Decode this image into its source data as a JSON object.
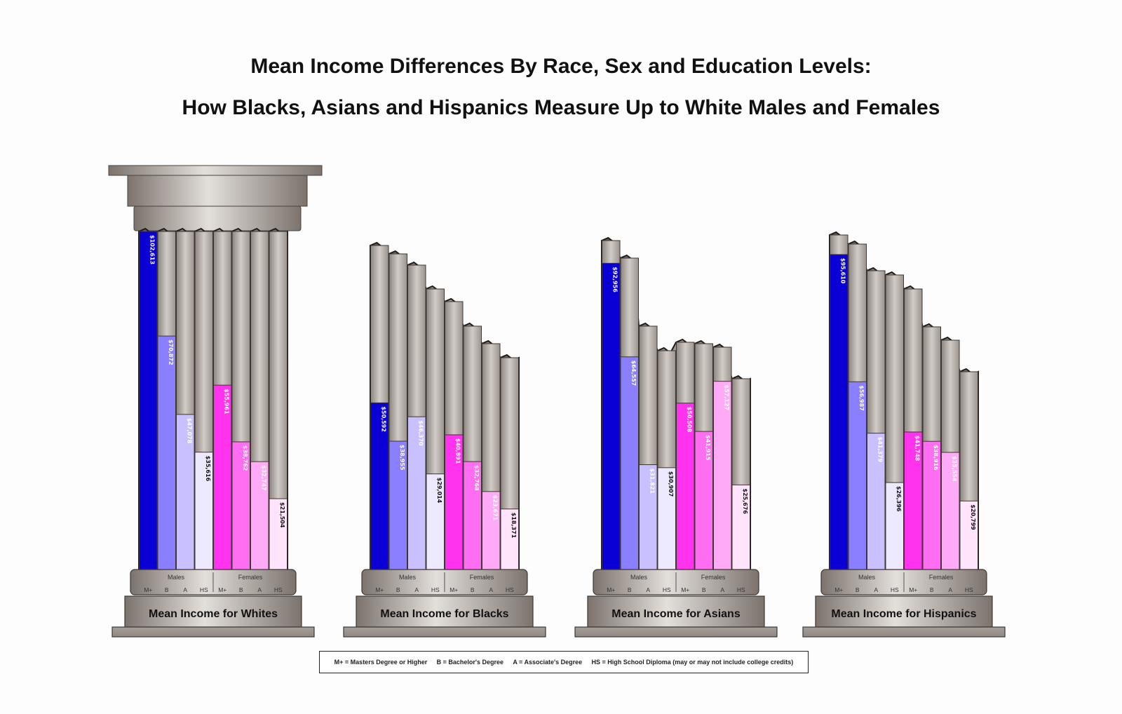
{
  "title_line1": "Mean Income Differences By Race, Sex and Education Levels:",
  "title_line2": "How Blacks, Asians and Hispanics Measure Up to White Males and Females",
  "group_labels": {
    "males": "Males",
    "females": "Females"
  },
  "level_labels": [
    "M+",
    "B",
    "A",
    "HS",
    "M+",
    "B",
    "A",
    "HS"
  ],
  "legend": [
    "M+ = Masters Degree or Higher",
    "B = Bachelor's Degree",
    "A = Associate's Degree",
    "HS = High School Diploma (may or may not include college credits)"
  ],
  "colors": {
    "male_mplus": "#0a00d6",
    "male_b": "#8a80ff",
    "male_a": "#c8c0ff",
    "male_hs": "#edeaff",
    "female_mplus": "#ff33ee",
    "female_b": "#ff6ef0",
    "female_a": "#ffaaf6",
    "female_hs": "#ffe4fb",
    "column_stone": "#a7a09b"
  },
  "chart_data": {
    "type": "bar",
    "title": "Mean Income Differences By Race, Sex and Education Levels: How Blacks, Asians and Hispanics Measure Up to White Males and Females",
    "categories": [
      "M+",
      "B",
      "A",
      "HS",
      "M+",
      "B",
      "A",
      "HS"
    ],
    "groups": [
      "Males",
      "Males",
      "Males",
      "Males",
      "Females",
      "Females",
      "Females",
      "Females"
    ],
    "series": [
      {
        "name": "Mean Income for Whites",
        "values": [
          102613,
          70872,
          47078,
          35616,
          55961,
          38762,
          32747,
          21504
        ],
        "labels": [
          "$102,613",
          "$70,872",
          "$47,078",
          "$35,616",
          "$55,961",
          "$38,762",
          "$32,747",
          "$21,504"
        ]
      },
      {
        "name": "Mean Income for Blacks",
        "values": [
          50592,
          38955,
          46370,
          29014,
          40891,
          32768,
          23671,
          18371
        ],
        "labels": [
          "$50,592",
          "$38,955",
          "$46,370",
          "$29,014",
          "$40,891",
          "$32,768",
          "$23,671",
          "$18,371"
        ]
      },
      {
        "name": "Mean Income for Asians",
        "values": [
          92956,
          64557,
          31821,
          30907,
          50508,
          41915,
          57127,
          25676
        ],
        "labels": [
          "$92,956",
          "$64,557",
          "$31,821",
          "$30,907",
          "$50,508",
          "$41,915",
          "$57,127",
          "$25,676"
        ]
      },
      {
        "name": "Mean Income for Hispanics",
        "values": [
          95610,
          56987,
          41379,
          26396,
          41748,
          38916,
          35554,
          20799
        ],
        "labels": [
          "$95,610",
          "$56,987",
          "$41,379",
          "$26,396",
          "$41,748",
          "$38,916",
          "$35,554",
          "$20,799"
        ]
      }
    ]
  }
}
